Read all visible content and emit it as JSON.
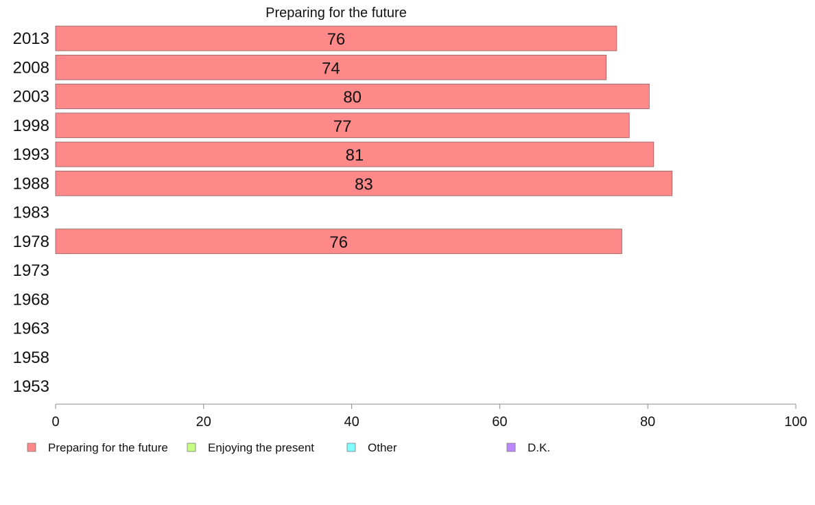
{
  "chart_data": {
    "type": "bar",
    "orientation": "horizontal",
    "title": "Preparing for the future",
    "categories": [
      "2013",
      "2008",
      "2003",
      "1998",
      "1993",
      "1988",
      "1983",
      "1978",
      "1973",
      "1968",
      "1963",
      "1958",
      "1953"
    ],
    "series": [
      {
        "name": "Preparing for the future",
        "color": "#ff8888",
        "values": [
          75.8,
          74.4,
          80.2,
          77.5,
          80.8,
          83.3,
          null,
          76.5,
          null,
          null,
          null,
          null,
          null
        ],
        "labels": [
          "76",
          "74",
          "80",
          "77",
          "81",
          "83",
          "",
          "76",
          "",
          "",
          "",
          "",
          ""
        ]
      }
    ],
    "xlim": [
      0,
      100
    ],
    "xticks": [
      "0",
      "20",
      "40",
      "60",
      "80",
      "100"
    ],
    "grid": false,
    "legend_position": "bottom",
    "legend": [
      {
        "label": "Preparing for the future",
        "color": "#ff8888"
      },
      {
        "label": "Enjoying the present",
        "color": "#c6ff80"
      },
      {
        "label": "Other",
        "color": "#80ffff"
      },
      {
        "label": "D.K.",
        "color": "#bb88ff"
      }
    ]
  }
}
